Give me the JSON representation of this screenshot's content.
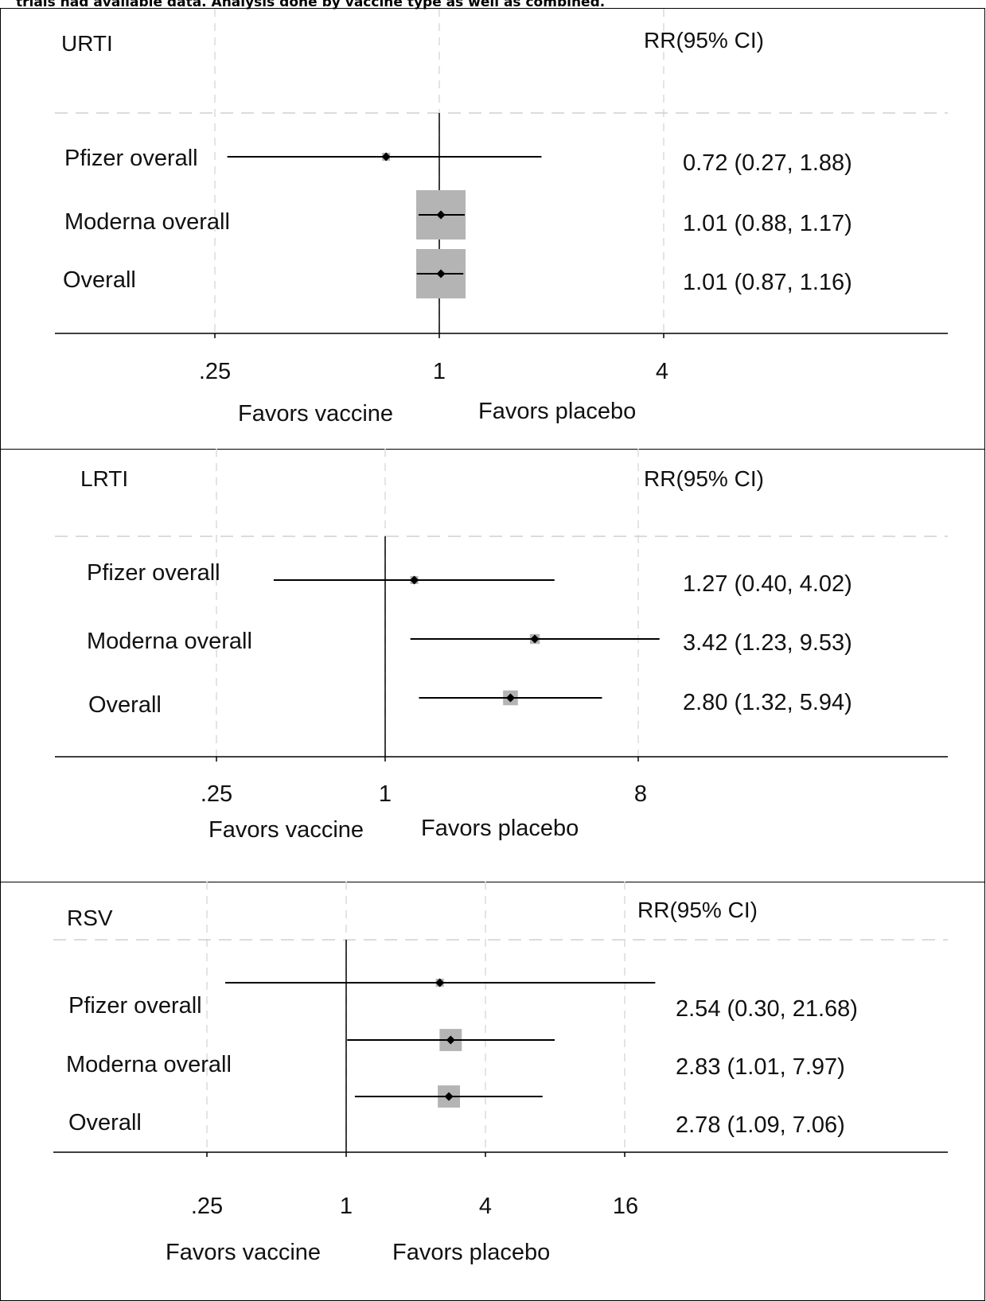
{
  "caption": "trials had available data. Analysis done by vaccine type as well as combined.",
  "chart_data": [
    {
      "type": "forest",
      "title": "URTI",
      "estimate_header": "RR",
      "ci_header": "(95% CI)",
      "x_scale": "log",
      "ticks": [
        0.25,
        1,
        4
      ],
      "tick_labels": [
        ".25",
        "1",
        "4"
      ],
      "favors_left": "Favors vaccine",
      "favors_right": "Favors placebo",
      "grid": true,
      "rows": [
        {
          "label": "Pfizer overall",
          "rr": 0.72,
          "lo": 0.27,
          "hi": 1.88,
          "weight_box": 0.05,
          "text": "0.72 (0.27, 1.88)"
        },
        {
          "label": "Moderna overall",
          "rr": 1.01,
          "lo": 0.88,
          "hi": 1.17,
          "weight_box": 1.0,
          "text": "1.01 (0.88, 1.17)"
        },
        {
          "label": "Overall",
          "rr": 1.01,
          "lo": 0.87,
          "hi": 1.16,
          "weight_box": 1.0,
          "text": "1.01 (0.87, 1.16)"
        }
      ]
    },
    {
      "type": "forest",
      "title": "LRTI",
      "estimate_header": "RR",
      "ci_header": "(95% CI)",
      "x_scale": "log",
      "ticks": [
        0.25,
        1,
        8
      ],
      "tick_labels": [
        ".25",
        "1",
        "8"
      ],
      "favors_left": "Favors vaccine",
      "favors_right": "Favors placebo",
      "grid": true,
      "rows": [
        {
          "label": "Pfizer overall",
          "rr": 1.27,
          "lo": 0.4,
          "hi": 4.02,
          "weight_box": 0.15,
          "text": "1.27 (0.40, 4.02)"
        },
        {
          "label": "Moderna overall",
          "rr": 3.42,
          "lo": 1.23,
          "hi": 9.53,
          "weight_box": 0.2,
          "text": "3.42 (1.23, 9.53)"
        },
        {
          "label": "Overall",
          "rr": 2.8,
          "lo": 1.32,
          "hi": 5.94,
          "weight_box": 0.3,
          "text": "2.80 (1.32, 5.94)"
        }
      ]
    },
    {
      "type": "forest",
      "title": "RSV",
      "estimate_header": "RR",
      "ci_header": "(95% CI)",
      "x_scale": "log",
      "ticks": [
        0.25,
        1,
        4,
        16
      ],
      "tick_labels": [
        ".25",
        "1",
        "4",
        "16"
      ],
      "favors_left": "Favors vaccine",
      "favors_right": "Favors placebo",
      "grid": true,
      "rows": [
        {
          "label": "Pfizer overall",
          "rr": 2.54,
          "lo": 0.3,
          "hi": 21.68,
          "weight_box": 0.1,
          "text": "2.54 (0.30, 21.68)"
        },
        {
          "label": "Moderna overall",
          "rr": 2.83,
          "lo": 1.01,
          "hi": 7.97,
          "weight_box": 0.45,
          "text": "2.83 (1.01, 7.97)"
        },
        {
          "label": "Overall",
          "rr": 2.78,
          "lo": 1.09,
          "hi": 7.06,
          "weight_box": 0.45,
          "text": "2.78 (1.09, 7.06)"
        }
      ]
    }
  ]
}
